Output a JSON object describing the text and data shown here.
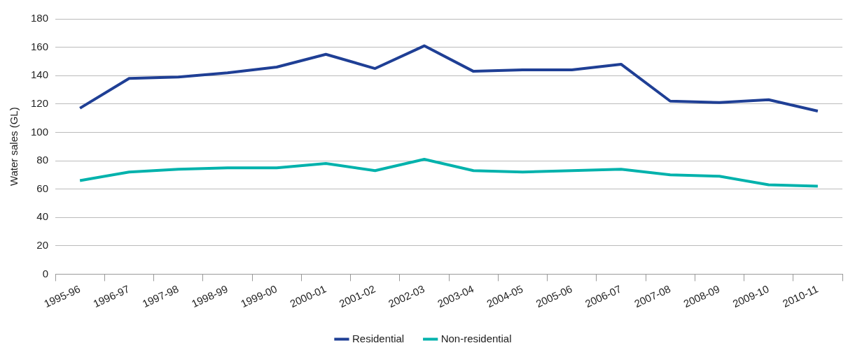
{
  "chart_data": {
    "type": "line",
    "ylabel": "Water sales (GL)",
    "categories": [
      "1995-96",
      "1996-97",
      "1997-98",
      "1998-99",
      "1999-00",
      "2000-01",
      "2001-02",
      "2002-03",
      "2003-04",
      "2004-05",
      "2005-06",
      "2006-07",
      "2007-08",
      "2008-09",
      "2009-10",
      "2010-11"
    ],
    "series": [
      {
        "name": "Residential",
        "color": "#1f3f95",
        "values": [
          117,
          138,
          139,
          142,
          146,
          155,
          145,
          161,
          143,
          144,
          144,
          148,
          122,
          121,
          123,
          115
        ]
      },
      {
        "name": "Non-residential",
        "color": "#00b2ac",
        "values": [
          66,
          72,
          74,
          75,
          75,
          78,
          73,
          81,
          73,
          72,
          73,
          74,
          70,
          69,
          63,
          62
        ]
      }
    ],
    "ylim": [
      0,
      180
    ],
    "yticks": [
      0,
      20,
      40,
      60,
      80,
      100,
      120,
      140,
      160,
      180
    ],
    "grid": "y",
    "legend": "bottom",
    "marker": "none",
    "line_style": "solid"
  }
}
